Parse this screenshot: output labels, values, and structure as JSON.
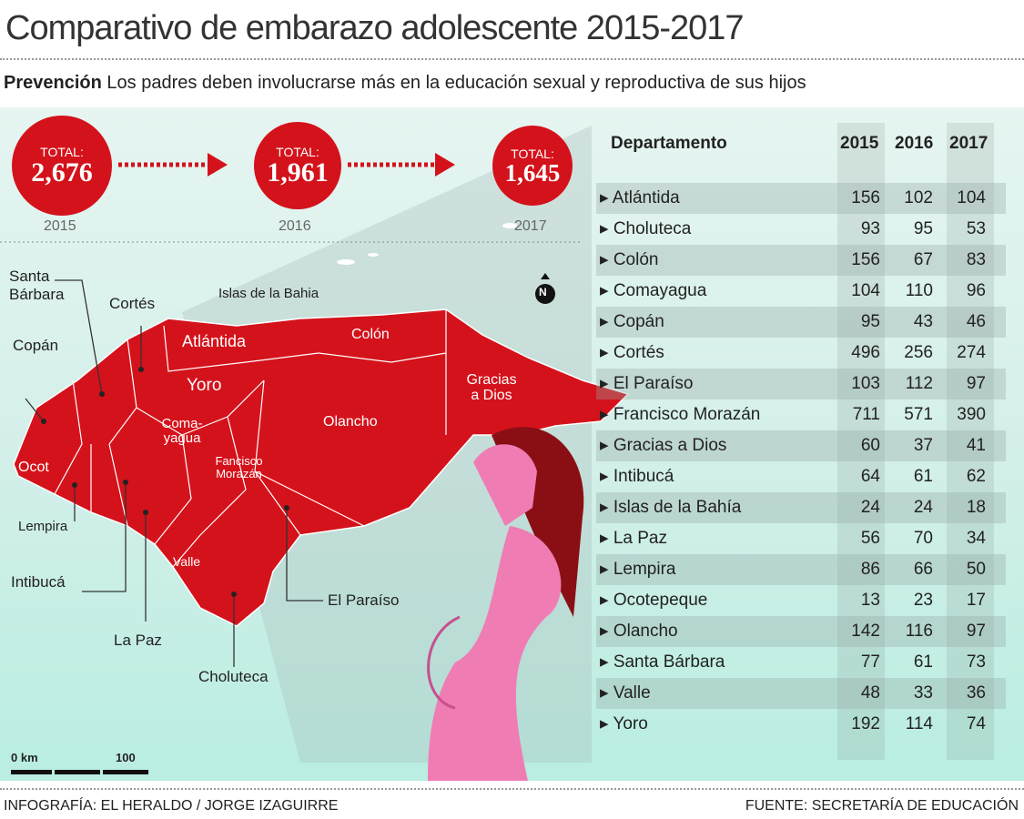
{
  "title": "Comparativo de embarazo adolescente 2015-2017",
  "subtitle": {
    "bold": "Prevención",
    "text": "Los padres deben involucrarse más en la educación sexual y reproductiva de sus hijos"
  },
  "totals": [
    {
      "label": "TOTAL:",
      "value": "2,676",
      "year": "2015"
    },
    {
      "label": "TOTAL:",
      "value": "1,961",
      "year": "2016"
    },
    {
      "label": "TOTAL:",
      "value": "1,645",
      "year": "2017"
    }
  ],
  "map": {
    "labels": {
      "santa_barbara": "Santa Bárbara",
      "cortes": "Cortés",
      "islas": "Islas de la Bahia",
      "copan": "Copán",
      "atlantida": "Atlántida",
      "colon": "Colón",
      "yoro": "Yoro",
      "gracias": "Gracias a Dios",
      "olancho": "Olancho",
      "comayagua": "Coma-yagua",
      "fm": "Fancisco Morazán",
      "ocot": "Ocot",
      "lempira": "Lempira",
      "intibuca": "Intibucá",
      "valle": "Valle",
      "lapaz": "La Paz",
      "paraiso": "El Paraíso",
      "choluteca": "Choluteca"
    },
    "north": "N",
    "scale": {
      "start": "0 km",
      "end": "100"
    }
  },
  "colors": {
    "red": "#d4121b",
    "pink": "#f07cb4",
    "panel": "#d4efe9"
  },
  "chart_data": {
    "type": "table",
    "columns": [
      "Departamento",
      "2015",
      "2016",
      "2017"
    ],
    "rows": [
      [
        "Atlántida",
        156,
        102,
        104
      ],
      [
        "Choluteca",
        93,
        95,
        53
      ],
      [
        "Colón",
        156,
        67,
        83
      ],
      [
        "Comayagua",
        104,
        110,
        96
      ],
      [
        "Copán",
        95,
        43,
        46
      ],
      [
        "Cortés",
        496,
        256,
        274
      ],
      [
        "El Paraíso",
        103,
        112,
        97
      ],
      [
        "Francisco Morazán",
        711,
        571,
        390
      ],
      [
        "Gracias a Dios",
        60,
        37,
        41
      ],
      [
        "Intibucá",
        64,
        61,
        62
      ],
      [
        "Islas de la Bahía",
        24,
        24,
        18
      ],
      [
        "La Paz",
        56,
        70,
        34
      ],
      [
        "Lempira",
        86,
        66,
        50
      ],
      [
        "Ocotepeque",
        13,
        23,
        17
      ],
      [
        "Olancho",
        142,
        116,
        97
      ],
      [
        "Santa Bárbara",
        77,
        61,
        73
      ],
      [
        "Valle",
        48,
        33,
        36
      ],
      [
        "Yoro",
        192,
        114,
        74
      ]
    ]
  },
  "footer": {
    "left": "INFOGRAFÍA: EL HERALDO / JORGE IZAGUIRRE",
    "right": "FUENTE: SECRETARÍA DE EDUCACIÓN"
  }
}
